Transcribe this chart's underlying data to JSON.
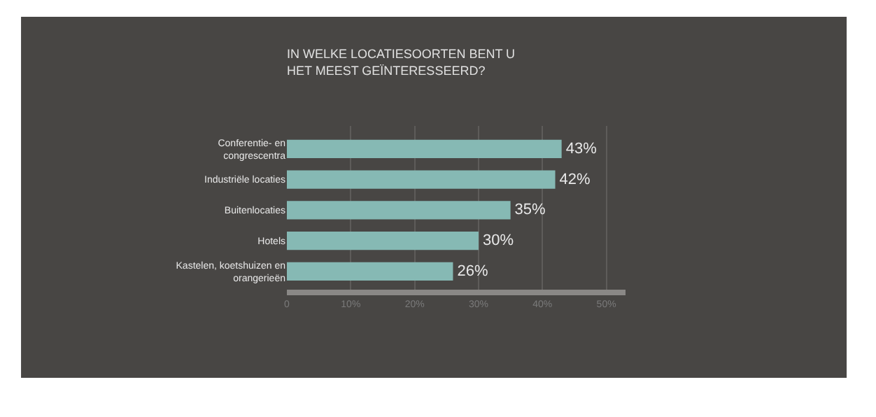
{
  "chart_data": {
    "type": "bar",
    "orientation": "horizontal",
    "title": "IN WELKE LOCATIESOORTEN BENT U HET MEEST GEÏNTERESSEERD?",
    "categories": [
      "Conferentie- en congrescentra",
      "Industriële locaties",
      "Buitenlocaties",
      "Hotels",
      "Kastelen, koetshuizen en orangerieën"
    ],
    "values": [
      43,
      42,
      35,
      30,
      26
    ],
    "value_labels": [
      "43%",
      "42%",
      "35%",
      "30%",
      "26%"
    ],
    "color": "#86b9b4",
    "xlim": [
      0,
      53
    ],
    "xticks": [
      0,
      {
        "value": 10,
        "label": "10%"
      },
      {
        "value": 20,
        "label": "20%"
      },
      {
        "value": 30,
        "label": "30%"
      },
      {
        "value": 40,
        "label": "40%"
      },
      {
        "value": 50,
        "label": "50%"
      }
    ],
    "grid": "x",
    "legend": false
  }
}
